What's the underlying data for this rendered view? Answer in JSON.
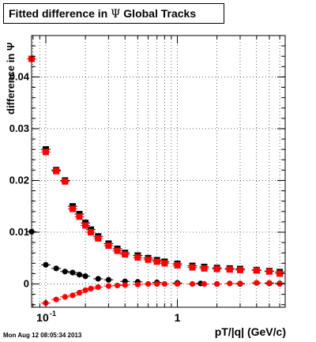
{
  "title": {
    "prefix": "Fitted difference in",
    "symbol": "Ψ",
    "suffix": "Global Tracks"
  },
  "timestamp": "Mon Aug 12 08:05:34 2013",
  "chart_data": {
    "type": "scatter",
    "title": "Fitted difference in Ψ Global Tracks",
    "xlabel": "pT/|q| (GeV/c)",
    "ylabel": "difference in Ψ",
    "xscale": "log",
    "xlim": [
      0.078,
      6.6
    ],
    "ylim": [
      -0.0045,
      0.048
    ],
    "grid": true,
    "xticks": [
      {
        "value": 0.1,
        "label": "10",
        "exp": "-1"
      },
      {
        "value": 1,
        "label": "1",
        "exp": ""
      }
    ],
    "yticks": [
      {
        "value": 0,
        "label": "0"
      },
      {
        "value": 0.01,
        "label": "0.01"
      },
      {
        "value": 0.02,
        "label": "0.02"
      },
      {
        "value": 0.03,
        "label": "0.03"
      },
      {
        "value": 0.04,
        "label": "0.04"
      }
    ],
    "series": [
      {
        "marker": "square",
        "color": "#000000",
        "x": [
          0.078,
          0.1,
          0.12,
          0.14,
          0.16,
          0.18,
          0.2,
          0.22,
          0.25,
          0.3,
          0.35,
          0.4,
          0.5,
          0.6,
          0.7,
          0.8,
          1.0,
          1.3,
          1.6,
          2.0,
          2.5,
          3.0,
          4.0,
          5.0,
          6.0
        ],
        "y": [
          0.0435,
          0.026,
          0.022,
          0.02,
          0.015,
          0.0135,
          0.0118,
          0.0105,
          0.0092,
          0.0078,
          0.0068,
          0.006,
          0.0055,
          0.005,
          0.0046,
          0.0043,
          0.0039,
          0.0035,
          0.0033,
          0.0031,
          0.003,
          0.0029,
          0.0027,
          0.0025,
          0.0023
        ]
      },
      {
        "marker": "square",
        "color": "#ff0000",
        "x": [
          0.078,
          0.1,
          0.12,
          0.14,
          0.16,
          0.18,
          0.2,
          0.22,
          0.25,
          0.3,
          0.35,
          0.4,
          0.5,
          0.6,
          0.7,
          0.8,
          1.0,
          1.3,
          1.6,
          2.0,
          2.5,
          3.0,
          4.0,
          5.0,
          6.0
        ],
        "y": [
          0.0435,
          0.0255,
          0.0218,
          0.0198,
          0.0145,
          0.013,
          0.0113,
          0.01,
          0.0088,
          0.0074,
          0.0064,
          0.0057,
          0.0051,
          0.0047,
          0.0043,
          0.004,
          0.0036,
          0.0032,
          0.003,
          0.0029,
          0.0028,
          0.0027,
          0.0026,
          0.0024,
          0.002
        ]
      },
      {
        "marker": "circle",
        "color": "#000000",
        "x": [
          0.078,
          0.1,
          0.12,
          0.14,
          0.16,
          0.18,
          0.2,
          0.25,
          0.3,
          0.4,
          0.5,
          0.7,
          1.0,
          1.5,
          2.0,
          3.0,
          4.0,
          5.0,
          6.0
        ],
        "y": [
          0.0101,
          0.0037,
          0.003,
          0.0024,
          0.0022,
          0.0018,
          0.0015,
          0.001,
          0.0008,
          0.0005,
          0.0004,
          0.0003,
          0.0002,
          0.0001,
          0.0,
          0.0,
          0.0002,
          0.0001,
          0.0001
        ]
      },
      {
        "marker": "circle",
        "color": "#ff0000",
        "x": [
          0.1,
          0.12,
          0.14,
          0.16,
          0.18,
          0.2,
          0.22,
          0.25,
          0.3,
          0.35,
          0.4,
          0.5,
          0.6,
          0.7,
          0.8,
          1.0,
          1.3,
          1.6,
          2.0,
          2.5,
          3.0,
          4.0,
          5.0,
          6.0
        ],
        "y": [
          -0.0037,
          -0.003,
          -0.0025,
          -0.0022,
          -0.0017,
          -0.0012,
          -0.0009,
          -0.0006,
          -0.0004,
          -0.0003,
          -0.0002,
          -0.0001,
          0.0,
          0.0,
          0.0,
          0.0,
          0.0,
          0.0,
          0.0,
          0.0001,
          0.0001,
          0.0002,
          0.0002,
          0.0
        ]
      }
    ]
  }
}
